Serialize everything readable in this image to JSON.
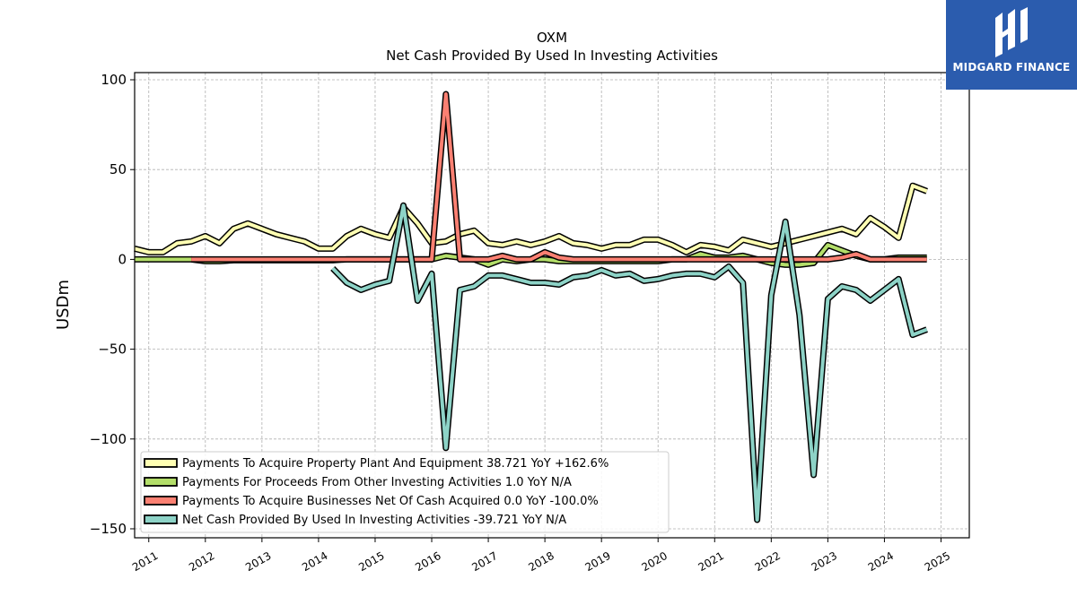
{
  "chart_data": {
    "type": "line",
    "title": "OXM",
    "subtitle": "Net Cash Provided By Used In Investing Activities",
    "ylabel": "USDm",
    "xlabel": "",
    "ylim": [
      -155,
      104
    ],
    "xlim": [
      2010.75,
      2025.5
    ],
    "yticks": [
      100,
      50,
      0,
      -50,
      -100,
      -150
    ],
    "ytick_labels": [
      "100",
      "50",
      "0",
      "−50",
      "−100",
      "−150"
    ],
    "xticks": [
      2011,
      2012,
      2013,
      2014,
      2015,
      2016,
      2017,
      2018,
      2019,
      2020,
      2021,
      2022,
      2023,
      2024,
      2025
    ],
    "xtick_labels": [
      "2011",
      "2012",
      "2013",
      "2014",
      "2015",
      "2016",
      "2017",
      "2018",
      "2019",
      "2020",
      "2021",
      "2022",
      "2023",
      "2024",
      "2025"
    ],
    "grid": true,
    "legend_position": "lower-left",
    "series": [
      {
        "name": "Payments To Acquire Property Plant And Equipment  38.721 YoY +162.6%",
        "color": "#ffffb3",
        "x": [
          2010.75,
          2011.0,
          2011.25,
          2011.5,
          2011.75,
          2012.0,
          2012.25,
          2012.5,
          2012.75,
          2013.0,
          2013.25,
          2013.5,
          2013.75,
          2014.0,
          2014.25,
          2014.5,
          2014.75,
          2015.0,
          2015.25,
          2015.5,
          2015.75,
          2016.0,
          2016.25,
          2016.5,
          2016.75,
          2017.0,
          2017.25,
          2017.5,
          2017.75,
          2018.0,
          2018.25,
          2018.5,
          2018.75,
          2019.0,
          2019.25,
          2019.5,
          2019.75,
          2020.0,
          2020.25,
          2020.5,
          2020.75,
          2021.0,
          2021.25,
          2021.5,
          2021.75,
          2022.0,
          2022.25,
          2022.5,
          2022.75,
          2023.0,
          2023.25,
          2023.5,
          2023.75,
          2024.0,
          2024.25,
          2024.5,
          2024.75
        ],
        "values": [
          6,
          4,
          4,
          9,
          10,
          13,
          9,
          17,
          20,
          17,
          14,
          12,
          10,
          6,
          6,
          13,
          17,
          14,
          12,
          29,
          20,
          9,
          10,
          14,
          16,
          9,
          8,
          10,
          8,
          10,
          13,
          9,
          8,
          6,
          8,
          8,
          11,
          11,
          8,
          4,
          8,
          7,
          5,
          11,
          9,
          7,
          9,
          11,
          13,
          15,
          17,
          14,
          23,
          18,
          12,
          41,
          38
        ]
      },
      {
        "name": "Payments For Proceeds From Other Investing Activities  1.0 YoY N/A",
        "color": "#b3de69",
        "x": [
          2010.75,
          2011.0,
          2011.25,
          2011.5,
          2011.75,
          2012.0,
          2012.25,
          2012.5,
          2012.75,
          2013.0,
          2013.25,
          2013.5,
          2013.75,
          2014.0,
          2014.25,
          2014.5,
          2014.75,
          2015.0,
          2015.25,
          2015.5,
          2015.75,
          2016.0,
          2016.25,
          2016.5,
          2016.75,
          2017.0,
          2017.25,
          2017.5,
          2017.75,
          2018.0,
          2018.25,
          2018.5,
          2018.75,
          2019.0,
          2019.25,
          2019.5,
          2019.75,
          2020.0,
          2020.25,
          2020.5,
          2020.75,
          2021.0,
          2021.25,
          2021.5,
          2021.75,
          2022.0,
          2022.25,
          2022.5,
          2022.75,
          2023.0,
          2023.25,
          2023.5,
          2023.75,
          2024.0,
          2024.25,
          2024.5,
          2024.75
        ],
        "values": [
          0,
          0,
          0,
          0,
          0,
          -1,
          -1,
          -0.5,
          -0.5,
          -0.5,
          -0.5,
          -0.5,
          -0.5,
          -0.5,
          -0.5,
          0,
          0,
          0,
          0,
          0,
          0,
          0,
          2,
          1,
          0,
          -3,
          0,
          -1,
          0,
          0,
          -1,
          -1,
          -1,
          -1,
          -1,
          -1,
          -1,
          -1,
          0,
          0,
          3,
          1,
          1,
          2,
          0,
          -2,
          -3,
          -3,
          -2,
          8,
          5,
          2,
          0,
          0,
          1,
          1,
          1
        ]
      },
      {
        "name": "Payments To Acquire Businesses Net Of Cash Acquired  0.0 YoY -100.0%",
        "color": "#fb8072",
        "x": [
          2011.75,
          2012.0,
          2012.25,
          2012.5,
          2012.75,
          2013.0,
          2013.25,
          2013.5,
          2013.75,
          2014.0,
          2014.25,
          2014.5,
          2014.75,
          2015.0,
          2015.25,
          2015.5,
          2015.75,
          2016.0,
          2016.25,
          2016.5,
          2016.75,
          2017.0,
          2017.25,
          2017.5,
          2017.75,
          2018.0,
          2018.25,
          2018.5,
          2018.75,
          2019.0,
          2019.25,
          2019.5,
          2019.75,
          2020.0,
          2020.25,
          2020.5,
          2020.75,
          2021.0,
          2021.25,
          2021.5,
          2021.75,
          2022.0,
          2022.25,
          2022.5,
          2022.75,
          2023.0,
          2023.25,
          2023.5,
          2023.75,
          2024.0,
          2024.25,
          2024.5,
          2024.75
        ],
        "values": [
          0,
          0,
          0,
          0,
          0,
          0,
          0,
          0,
          0,
          0,
          0,
          0,
          0,
          0,
          0,
          0,
          0,
          0,
          92,
          0,
          0,
          0,
          2,
          0,
          0,
          4,
          1,
          0,
          0,
          0,
          0,
          0,
          0,
          0,
          0,
          0,
          0,
          0,
          0,
          0,
          0,
          0,
          0,
          0,
          0,
          0,
          1,
          3,
          0,
          0,
          0,
          0,
          0
        ]
      },
      {
        "name": "Net Cash Provided By Used In Investing Activities  -39.721 YoY N/A",
        "color": "#8dd3c7",
        "x": [
          2014.25,
          2014.5,
          2014.75,
          2015.0,
          2015.25,
          2015.5,
          2015.75,
          2016.0,
          2016.25,
          2016.5,
          2016.75,
          2017.0,
          2017.25,
          2017.5,
          2017.75,
          2018.0,
          2018.25,
          2018.5,
          2018.75,
          2019.0,
          2019.25,
          2019.5,
          2019.75,
          2020.0,
          2020.25,
          2020.5,
          2020.75,
          2021.0,
          2021.25,
          2021.5,
          2021.75,
          2022.0,
          2022.25,
          2022.5,
          2022.75,
          2023.0,
          2023.25,
          2023.5,
          2023.75,
          2024.0,
          2024.25,
          2024.5,
          2024.75
        ],
        "values": [
          -5,
          -13,
          -17,
          -14,
          -12,
          30,
          -23,
          -8,
          -105,
          -17,
          -15,
          -9,
          -9,
          -11,
          -13,
          -13,
          -14,
          -10,
          -9,
          -6,
          -9,
          -8,
          -12,
          -11,
          -9,
          -8,
          -8,
          -10,
          -4,
          -13,
          -145,
          -20,
          21,
          -31,
          -120,
          -22,
          -15,
          -17,
          -23,
          -17,
          -11,
          -42,
          -39
        ]
      }
    ]
  },
  "logo": {
    "text": "MIDGARD FINANCE",
    "color": "#2b5cae"
  }
}
